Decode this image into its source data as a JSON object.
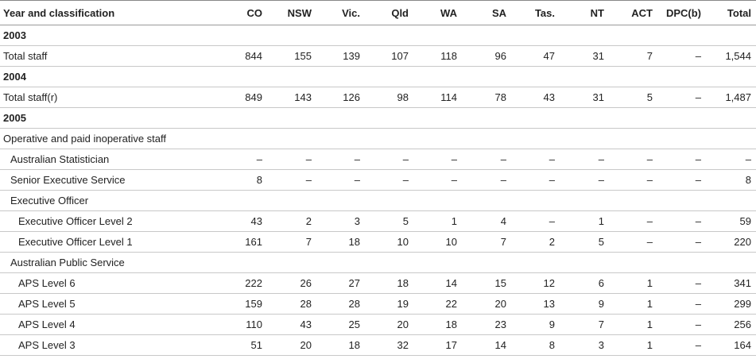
{
  "table": {
    "header": [
      "Year and classification",
      "CO",
      "NSW",
      "Vic.",
      "Qld",
      "WA",
      "SA",
      "Tas.",
      "NT",
      "ACT",
      "DPC(b)",
      "Total"
    ],
    "rows": [
      [
        "2003"
      ],
      [
        "Total staff",
        "844",
        "155",
        "139",
        "107",
        "118",
        "96",
        "47",
        "31",
        "7",
        "–",
        "1,544"
      ],
      [
        "2004"
      ],
      [
        "Total staff(r)",
        "849",
        "143",
        "126",
        "98",
        "114",
        "78",
        "43",
        "31",
        "5",
        "–",
        "1,487"
      ],
      [
        "2005"
      ],
      [
        "Operative and paid inoperative staff"
      ],
      [
        "Australian Statistician",
        "–",
        "–",
        "–",
        "–",
        "–",
        "–",
        "–",
        "–",
        "–",
        "–",
        "–"
      ],
      [
        "Senior Executive Service",
        "8",
        "–",
        "–",
        "–",
        "–",
        "–",
        "–",
        "–",
        "–",
        "–",
        "8"
      ],
      [
        "Executive Officer"
      ],
      [
        "Executive Officer Level 2",
        "43",
        "2",
        "3",
        "5",
        "1",
        "4",
        "–",
        "1",
        "–",
        "–",
        "59"
      ],
      [
        "Executive Officer Level 1",
        "161",
        "7",
        "18",
        "10",
        "10",
        "7",
        "2",
        "5",
        "–",
        "–",
        "220"
      ],
      [
        "Australian Public Service"
      ],
      [
        "APS Level 6",
        "222",
        "26",
        "27",
        "18",
        "14",
        "15",
        "12",
        "6",
        "1",
        "–",
        "341"
      ],
      [
        "APS Level 5",
        "159",
        "28",
        "28",
        "19",
        "22",
        "20",
        "13",
        "9",
        "1",
        "–",
        "299"
      ],
      [
        "APS Level 4",
        "110",
        "43",
        "25",
        "20",
        "18",
        "23",
        "9",
        "7",
        "1",
        "–",
        "256"
      ],
      [
        "APS Level 3",
        "51",
        "20",
        "18",
        "32",
        "17",
        "14",
        "8",
        "3",
        "1",
        "–",
        "164"
      ]
    ]
  }
}
